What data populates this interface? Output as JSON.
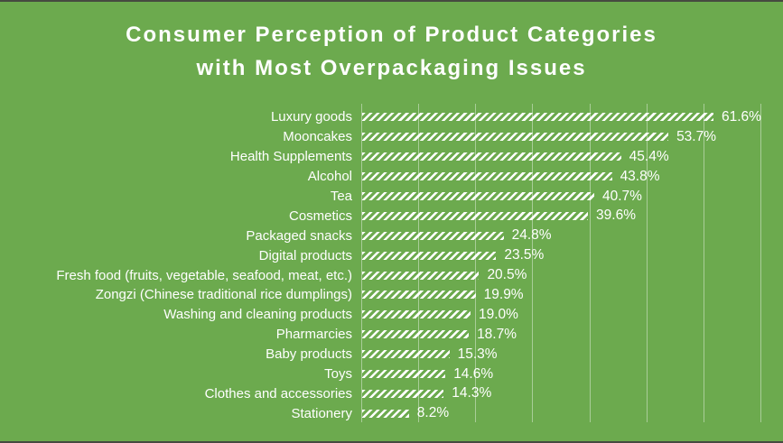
{
  "title": {
    "line1": "Consumer Perception of Product Categories",
    "line2": "with Most Overpackaging Issues"
  },
  "colors": {
    "background": "#6caa4e",
    "text": "#ffffff",
    "gridline": "rgba(255,255,255,0.42)",
    "bar_hatch": "#ffffff",
    "edge_strip": "#464a40"
  },
  "chart_data": {
    "type": "bar",
    "orientation": "horizontal",
    "title": "Consumer Perception of Product Categories with Most Overpackaging Issues",
    "xlabel": "",
    "ylabel": "",
    "xlim": [
      0,
      70
    ],
    "gridline_interval": 10,
    "grid": true,
    "legend": false,
    "bar_style": "white-diagonal-hatch",
    "categories": [
      "Luxury goods",
      "Mooncakes",
      "Health Supplements",
      "Alcohol",
      "Tea",
      "Cosmetics",
      "Packaged snacks",
      "Digital products",
      "Fresh food (fruits, vegetable, seafood, meat, etc.)",
      "Zongzi (Chinese traditional rice dumplings)",
      "Washing and cleaning products",
      "Pharmarcies",
      "Baby products",
      "Toys",
      "Clothes and accessories",
      "Stationery"
    ],
    "values": [
      61.6,
      53.7,
      45.4,
      43.8,
      40.7,
      39.6,
      24.8,
      23.5,
      20.5,
      19.9,
      19.0,
      18.7,
      15.3,
      14.6,
      14.3,
      8.2
    ],
    "value_labels": [
      "61.6%",
      "53.7%",
      "45.4%",
      "43.8%",
      "40.7%",
      "39.6%",
      "24.8%",
      "23.5%",
      "20.5%",
      "19.9%",
      "19.0%",
      "18.7%",
      "15.3%",
      "14.6%",
      "14.3%",
      "8.2%"
    ]
  }
}
